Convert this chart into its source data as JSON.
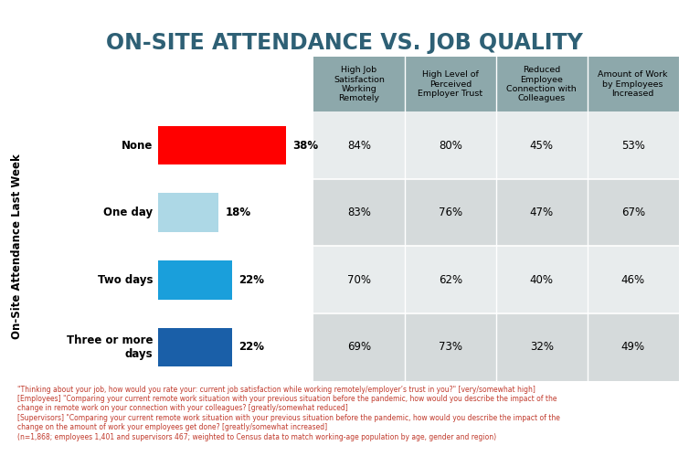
{
  "title": "ON-SITE ATTENDANCE VS. JOB QUALITY",
  "title_color": "#2e6075",
  "rows": [
    {
      "label": "None",
      "pct": 38,
      "bar_color": "#ff0000",
      "col1": "84%",
      "col2": "80%",
      "col3": "45%",
      "col4": "53%"
    },
    {
      "label": "One day",
      "pct": 18,
      "bar_color": "#add8e6",
      "col1": "83%",
      "col2": "76%",
      "col3": "47%",
      "col4": "67%"
    },
    {
      "label": "Two days",
      "pct": 22,
      "bar_color": "#1a9fdb",
      "col1": "70%",
      "col2": "62%",
      "col3": "40%",
      "col4": "46%"
    },
    {
      "label": "Three or more\ndays",
      "pct": 22,
      "bar_color": "#1a5fa8",
      "col1": "69%",
      "col2": "73%",
      "col3": "32%",
      "col4": "49%"
    }
  ],
  "col_headers": [
    "High Job\nSatisfaction\nWorking\nRemotely",
    "High Level of\nPerceived\nEmployer Trust",
    "Reduced\nEmployee\nConnection with\nColleagues",
    "Amount of Work\nby Employees\nIncreased"
  ],
  "ylabel": "On-Site Attendance Last Week",
  "header_bg": "#8da8ab",
  "row_bg_light": "#e8eced",
  "row_bg_dark": "#d5dadb",
  "footer_text": "\"Thinking about your job, how would you rate your: current job satisfaction while working remotely/employer’s trust in you?\" [very/somewhat high]\n[Employees] \"Comparing your current remote work situation with your previous situation before the pandemic, how would you describe the impact of the\nchange in remote work on your connection with your colleagues? [greatly/somewhat reduced]\n[Supervisors] \"Comparing your current remote work situation with your previous situation before the pandemic, how would you describe the impact of the\nchange on the amount of work your employees get done? [greatly/somewhat increased]\n(n=1,868; employees 1,401 and supervisors 467; weighted to Census data to match working-age population by age, gender and region)",
  "footer_color": "#c0392b"
}
